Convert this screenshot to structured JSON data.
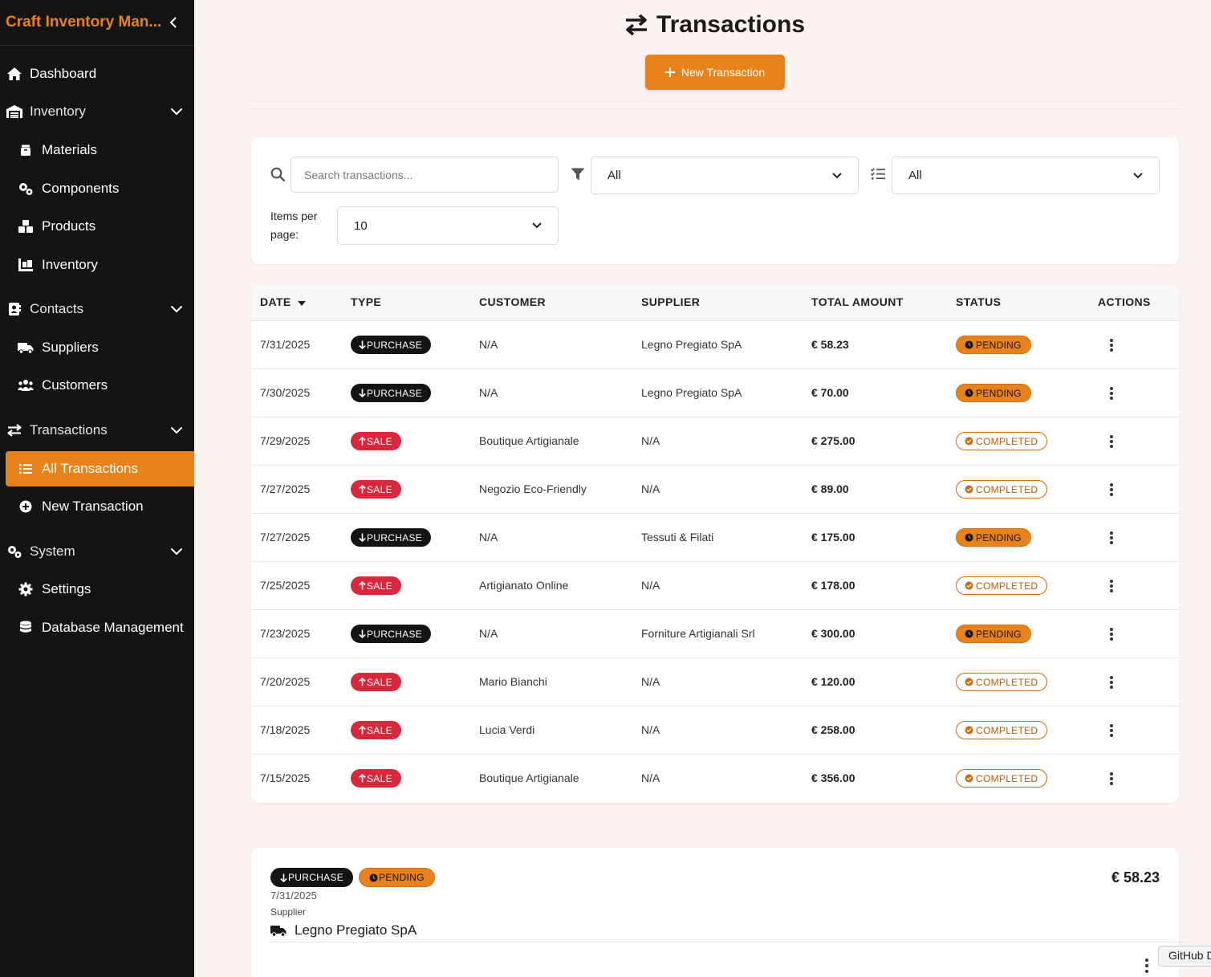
{
  "app": {
    "title": "Craft Inventory Man...",
    "collapse_icon": "chevron-left-icon"
  },
  "sidebar": {
    "items": [
      {
        "label": "Dashboard",
        "icon": "home-icon"
      },
      {
        "label": "Inventory",
        "icon": "warehouse-icon"
      },
      {
        "label": "Materials",
        "icon": "box-icon"
      },
      {
        "label": "Components",
        "icon": "cogs-icon"
      },
      {
        "label": "Products",
        "icon": "cubes-icon"
      },
      {
        "label": "Inventory",
        "icon": "pallet-icon"
      },
      {
        "label": "Contacts",
        "icon": "address-book-icon"
      },
      {
        "label": "Suppliers",
        "icon": "truck-icon"
      },
      {
        "label": "Customers",
        "icon": "users-icon"
      },
      {
        "label": "Transactions",
        "icon": "exchange-icon"
      },
      {
        "label": "All Transactions",
        "icon": "list-icon"
      },
      {
        "label": "New Transaction",
        "icon": "plus-circle-icon"
      },
      {
        "label": "System",
        "icon": "cogs-icon"
      },
      {
        "label": "Settings",
        "icon": "gear-icon"
      },
      {
        "label": "Database Management",
        "icon": "database-icon"
      }
    ]
  },
  "header": {
    "title": "Transactions",
    "title_icon": "exchange-icon",
    "new_button": "New Transaction"
  },
  "filters": {
    "search_placeholder": "Search transactions...",
    "type_value": "All",
    "status_value": "All",
    "items_per_page_label": "Items per page:",
    "items_per_page_value": "10"
  },
  "table": {
    "columns": [
      "DATE",
      "TYPE",
      "CUSTOMER",
      "SUPPLIER",
      "TOTAL AMOUNT",
      "STATUS",
      "ACTIONS"
    ],
    "rows": [
      {
        "date": "7/31/2025",
        "type": "PURCHASE",
        "customer": "N/A",
        "supplier": "Legno Pregiato SpA",
        "amount": "€ 58.23",
        "status": "PENDING"
      },
      {
        "date": "7/30/2025",
        "type": "PURCHASE",
        "customer": "N/A",
        "supplier": "Legno Pregiato SpA",
        "amount": "€ 70.00",
        "status": "PENDING"
      },
      {
        "date": "7/29/2025",
        "type": "SALE",
        "customer": "Boutique Artigianale",
        "supplier": "N/A",
        "amount": "€ 275.00",
        "status": "COMPLETED"
      },
      {
        "date": "7/27/2025",
        "type": "SALE",
        "customer": "Negozio Eco-Friendly",
        "supplier": "N/A",
        "amount": "€ 89.00",
        "status": "COMPLETED"
      },
      {
        "date": "7/27/2025",
        "type": "PURCHASE",
        "customer": "N/A",
        "supplier": "Tessuti & Filati",
        "amount": "€ 175.00",
        "status": "PENDING"
      },
      {
        "date": "7/25/2025",
        "type": "SALE",
        "customer": "Artigianato Online",
        "supplier": "N/A",
        "amount": "€ 178.00",
        "status": "COMPLETED"
      },
      {
        "date": "7/23/2025",
        "type": "PURCHASE",
        "customer": "N/A",
        "supplier": "Forniture Artigianali Srl",
        "amount": "€ 300.00",
        "status": "PENDING"
      },
      {
        "date": "7/20/2025",
        "type": "SALE",
        "customer": "Mario Bianchi",
        "supplier": "N/A",
        "amount": "€ 120.00",
        "status": "COMPLETED"
      },
      {
        "date": "7/18/2025",
        "type": "SALE",
        "customer": "Lucia Verdi",
        "supplier": "N/A",
        "amount": "€ 258.00",
        "status": "COMPLETED"
      },
      {
        "date": "7/15/2025",
        "type": "SALE",
        "customer": "Boutique Artigianale",
        "supplier": "N/A",
        "amount": "€ 356.00",
        "status": "COMPLETED"
      }
    ]
  },
  "detail": {
    "type": "PURCHASE",
    "status": "PENDING",
    "date": "7/31/2025",
    "supplier_label": "Supplier",
    "supplier": "Legno Pregiato SpA",
    "amount": "€ 58.23"
  },
  "github_tab": "GitHub D",
  "colors": {
    "accent": "#e8821a",
    "sidebar_bg": "#141414",
    "sale": "#d9273b",
    "purchase": "#141414",
    "background": "#fbf3ef"
  }
}
